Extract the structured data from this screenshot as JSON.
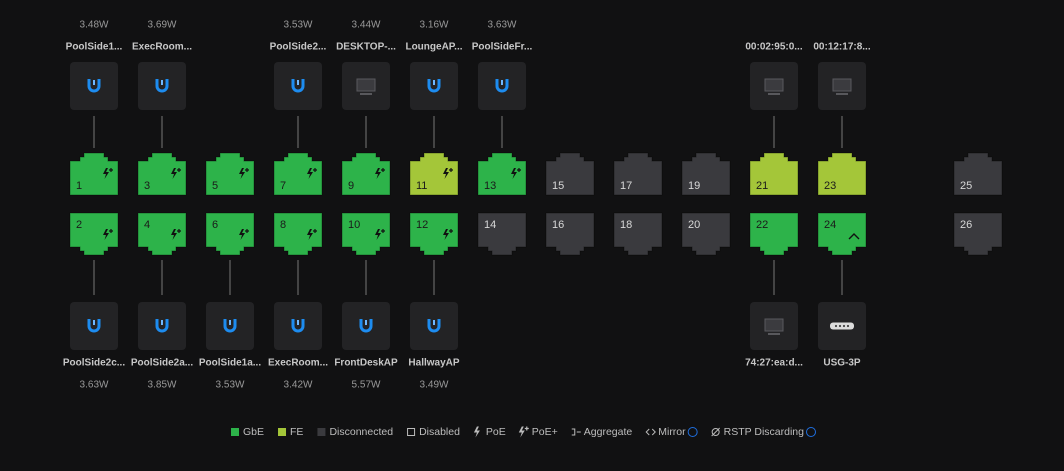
{
  "ports": [
    {
      "label": "1",
      "color": "#2db34a",
      "poe_plus": true,
      "device": {
        "name": "PoolSide1...",
        "power": "3.48W",
        "icon": "unifi"
      }
    },
    {
      "label": "2",
      "color": "#2db34a",
      "poe_plus": true,
      "device": {
        "name": "PoolSide2c...",
        "power": "3.63W",
        "icon": "unifi"
      }
    },
    {
      "label": "3",
      "color": "#2db34a",
      "poe_plus": true,
      "device": {
        "name": "ExecRoom...",
        "power": "3.69W",
        "icon": "unifi"
      }
    },
    {
      "label": "4",
      "color": "#2db34a",
      "poe_plus": true,
      "device": {
        "name": "PoolSide2a...",
        "power": "3.85W",
        "icon": "unifi"
      }
    },
    {
      "label": "5",
      "color": "#2db34a",
      "poe_plus": true
    },
    {
      "label": "6",
      "color": "#2db34a",
      "poe_plus": true,
      "device": {
        "name": "PoolSide1a...",
        "power": "3.53W",
        "icon": "unifi"
      }
    },
    {
      "label": "7",
      "color": "#2db34a",
      "poe_plus": true,
      "device": {
        "name": "PoolSide2...",
        "power": "3.53W",
        "icon": "unifi"
      }
    },
    {
      "label": "8",
      "color": "#2db34a",
      "poe_plus": true,
      "device": {
        "name": "ExecRoom...",
        "power": "3.42W",
        "icon": "unifi"
      }
    },
    {
      "label": "9",
      "color": "#2db34a",
      "poe_plus": true,
      "device": {
        "name": "DESKTOP-...",
        "power": "3.44W",
        "icon": "computer"
      }
    },
    {
      "label": "10",
      "color": "#2db34a",
      "poe_plus": true,
      "device": {
        "name": "FrontDeskAP",
        "power": "5.57W",
        "icon": "unifi"
      }
    },
    {
      "label": "11",
      "color": "#a4c639",
      "poe_plus": true,
      "device": {
        "name": "LoungeAP...",
        "power": "3.16W",
        "icon": "unifi"
      }
    },
    {
      "label": "12",
      "color": "#2db34a",
      "poe_plus": true,
      "device": {
        "name": "HallwayAP",
        "power": "3.49W",
        "icon": "unifi"
      }
    },
    {
      "label": "13",
      "color": "#2db34a",
      "poe_plus": true,
      "device": {
        "name": "PoolSideFr...",
        "power": "3.63W",
        "icon": "unifi"
      }
    },
    {
      "label": "14",
      "color": "#3a3a3e"
    },
    {
      "label": "15",
      "color": "#3a3a3e"
    },
    {
      "label": "16",
      "color": "#3a3a3e"
    },
    {
      "label": "17",
      "color": "#3a3a3e"
    },
    {
      "label": "18",
      "color": "#3a3a3e"
    },
    {
      "label": "19",
      "color": "#3a3a3e"
    },
    {
      "label": "20",
      "color": "#3a3a3e"
    },
    {
      "label": "21",
      "color": "#a4c639",
      "device": {
        "name": "00:02:95:0...",
        "icon": "computer"
      }
    },
    {
      "label": "22",
      "color": "#2db34a",
      "device": {
        "name": "74:27:ea:d...",
        "icon": "computer"
      }
    },
    {
      "label": "23",
      "color": "#a4c639",
      "device": {
        "name": "00:12:17:8...",
        "icon": "computer"
      }
    },
    {
      "label": "24",
      "color": "#2db34a",
      "uplink": true,
      "device": {
        "name": "USG-3P",
        "icon": "gateway"
      }
    },
    {
      "label": "25",
      "color": "#3a3a3e"
    },
    {
      "label": "26",
      "color": "#3a3a3e"
    }
  ],
  "legend": [
    {
      "label": "GbE",
      "icon": "square",
      "color": "#2db34a"
    },
    {
      "label": "FE",
      "icon": "square",
      "color": "#a4c639"
    },
    {
      "label": "Disconnected",
      "icon": "square",
      "color": "#3a3a3e"
    },
    {
      "label": "Disabled",
      "icon": "outline"
    },
    {
      "label": "PoE",
      "icon": "poe"
    },
    {
      "label": "PoE+",
      "icon": "poe-plus"
    },
    {
      "label": "Aggregate",
      "icon": "aggregate"
    },
    {
      "label": "Mirror",
      "icon": "mirror",
      "info": true
    },
    {
      "label": "RSTP Discarding",
      "icon": "rstp",
      "info": true
    }
  ]
}
